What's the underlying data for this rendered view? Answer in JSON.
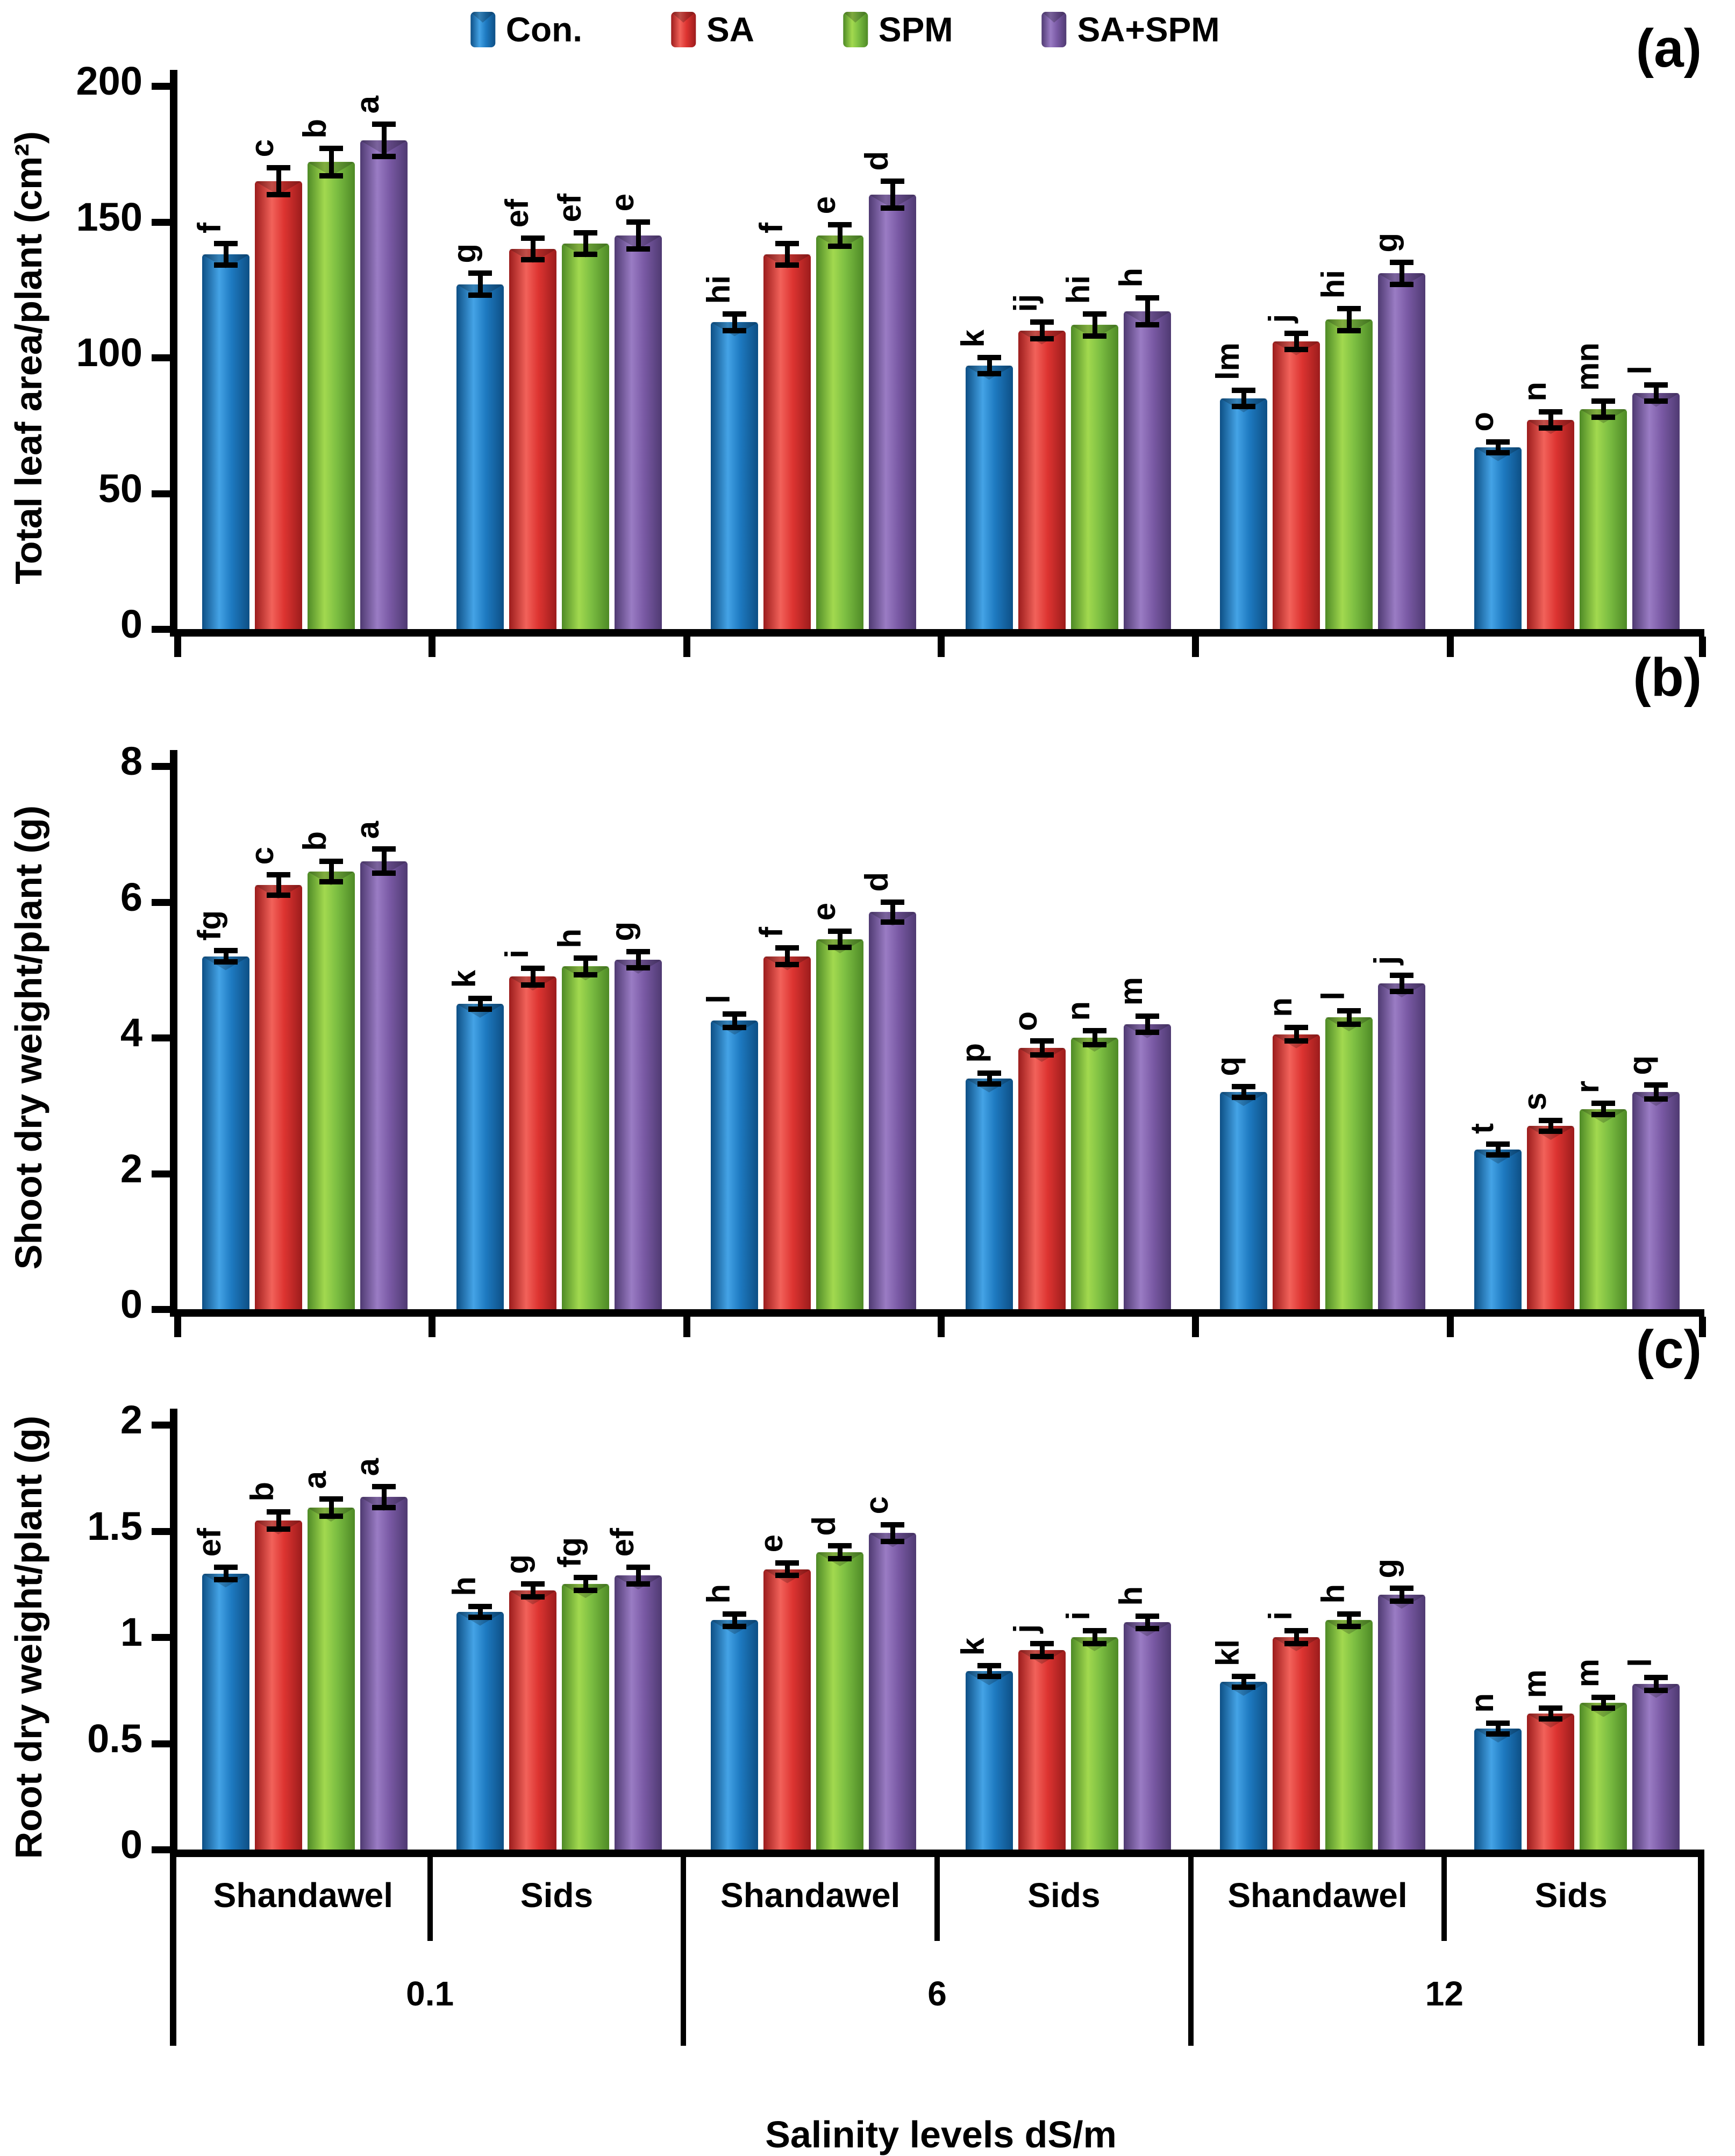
{
  "legend_note": "legend labels bound from chart_data.0.series names",
  "x_axis": {
    "group_labels": [
      "Shandawel",
      "Sids",
      "Shandawel",
      "Sids",
      "Shandawel",
      "Sids"
    ],
    "salinity_labels": [
      "0.1",
      "6",
      "12"
    ],
    "title": "Salinity levels dS/m"
  },
  "chart_data": [
    {
      "type": "bar",
      "panel_label": "(a)",
      "ylabel": "Total leaf area/plant (cm²)",
      "xlabel": "Salinity levels dS/m",
      "ylim": [
        0,
        200
      ],
      "yticks": [
        "0",
        "50",
        "100",
        "150",
        "200"
      ],
      "grid": false,
      "legend_position": "top-center",
      "categories": [
        "Shandawel 0.1",
        "Sids 0.1",
        "Shandawel 6",
        "Sids 6",
        "Shandawel 12",
        "Sids 12"
      ],
      "series": [
        {
          "name": "Con.",
          "color": "#1e7ac1",
          "color_light": "#44a3e6",
          "color_dark": "#0d4f85",
          "values": [
            138,
            127,
            113,
            97,
            85,
            67
          ],
          "errors": [
            4,
            4,
            3,
            3,
            3,
            2
          ],
          "letters": [
            "f",
            "g",
            "hi",
            "k",
            "lm",
            "o"
          ]
        },
        {
          "name": "SA",
          "color": "#dd3431",
          "color_light": "#f2625a",
          "color_dark": "#9c1c1c",
          "values": [
            165,
            140,
            138,
            110,
            106,
            77
          ],
          "errors": [
            5,
            4,
            4,
            3,
            3,
            3
          ],
          "letters": [
            "c",
            "ef",
            "f",
            "ij",
            "j",
            "n"
          ]
        },
        {
          "name": "SPM",
          "color": "#7cbe42",
          "color_light": "#a2d94f",
          "color_dark": "#4e8a26",
          "values": [
            172,
            142,
            145,
            112,
            114,
            81
          ],
          "errors": [
            5,
            4,
            4,
            4,
            4,
            3
          ],
          "letters": [
            "b",
            "ef",
            "e",
            "hi",
            "hi",
            "mn"
          ]
        },
        {
          "name": "SA+SPM",
          "color": "#7a5aa5",
          "color_light": "#9a7cc4",
          "color_dark": "#4f3a72",
          "values": [
            180,
            145,
            160,
            117,
            131,
            87
          ],
          "errors": [
            6,
            5,
            5,
            5,
            4,
            3
          ],
          "letters": [
            "a",
            "e",
            "d",
            "h",
            "g",
            "l"
          ]
        }
      ]
    },
    {
      "type": "bar",
      "panel_label": "(b)",
      "ylabel": "Shoot dry weight/plant (g)",
      "xlabel": "Salinity levels dS/m",
      "ylim": [
        0,
        8
      ],
      "yticks": [
        "0",
        "2",
        "4",
        "6",
        "8"
      ],
      "grid": false,
      "legend_position": "top-center",
      "categories": [
        "Shandawel 0.1",
        "Sids 0.1",
        "Shandawel 6",
        "Sids 6",
        "Shandawel 12",
        "Sids 12"
      ],
      "series": [
        {
          "name": "Con.",
          "color": "#1e7ac1",
          "color_light": "#44a3e6",
          "color_dark": "#0d4f85",
          "values": [
            5.2,
            4.5,
            4.25,
            3.4,
            3.2,
            2.35
          ],
          "errors": [
            0.08,
            0.08,
            0.1,
            0.08,
            0.08,
            0.06
          ],
          "letters": [
            "fg",
            "k",
            "l",
            "p",
            "q",
            "t"
          ]
        },
        {
          "name": "SA",
          "color": "#dd3431",
          "color_light": "#f2625a",
          "color_dark": "#9c1c1c",
          "values": [
            6.25,
            4.9,
            5.2,
            3.85,
            4.05,
            2.7
          ],
          "errors": [
            0.15,
            0.12,
            0.12,
            0.1,
            0.1,
            0.08
          ],
          "letters": [
            "c",
            "i",
            "f",
            "o",
            "n",
            "s"
          ]
        },
        {
          "name": "SPM",
          "color": "#7cbe42",
          "color_light": "#a2d94f",
          "color_dark": "#4e8a26",
          "values": [
            6.45,
            5.05,
            5.45,
            4.0,
            4.3,
            2.95
          ],
          "errors": [
            0.15,
            0.12,
            0.12,
            0.1,
            0.1,
            0.08
          ],
          "letters": [
            "b",
            "h",
            "e",
            "n",
            "l",
            "r"
          ]
        },
        {
          "name": "SA+SPM",
          "color": "#7a5aa5",
          "color_light": "#9a7cc4",
          "color_dark": "#4f3a72",
          "values": [
            6.6,
            5.15,
            5.85,
            4.2,
            4.8,
            3.2
          ],
          "errors": [
            0.18,
            0.12,
            0.15,
            0.12,
            0.12,
            0.1
          ],
          "letters": [
            "a",
            "g",
            "d",
            "m",
            "j",
            "q"
          ]
        }
      ]
    },
    {
      "type": "bar",
      "panel_label": "(c)",
      "ylabel": "Root dry weight/plant (g)",
      "xlabel": "Salinity levels dS/m",
      "ylim": [
        0,
        2
      ],
      "yticks": [
        "0",
        "0.5",
        "1",
        "1.5",
        "2"
      ],
      "grid": false,
      "legend_position": "top-center",
      "categories": [
        "Shandawel 0.1",
        "Sids 0.1",
        "Shandawel 6",
        "Sids 6",
        "Shandawel 12",
        "Sids 12"
      ],
      "series": [
        {
          "name": "Con.",
          "color": "#1e7ac1",
          "color_light": "#44a3e6",
          "color_dark": "#0d4f85",
          "values": [
            1.3,
            1.12,
            1.08,
            0.84,
            0.79,
            0.57
          ],
          "errors": [
            0.03,
            0.02,
            0.03,
            0.02,
            0.02,
            0.02
          ],
          "letters": [
            "ef",
            "h",
            "h",
            "k",
            "kl",
            "n"
          ]
        },
        {
          "name": "SA",
          "color": "#dd3431",
          "color_light": "#f2625a",
          "color_dark": "#9c1c1c",
          "values": [
            1.55,
            1.22,
            1.32,
            0.94,
            1.0,
            0.64
          ],
          "errors": [
            0.04,
            0.03,
            0.03,
            0.03,
            0.03,
            0.02
          ],
          "letters": [
            "b",
            "g",
            "e",
            "j",
            "i",
            "m"
          ]
        },
        {
          "name": "SPM",
          "color": "#7cbe42",
          "color_light": "#a2d94f",
          "color_dark": "#4e8a26",
          "values": [
            1.61,
            1.25,
            1.4,
            1.0,
            1.08,
            0.69
          ],
          "errors": [
            0.04,
            0.03,
            0.03,
            0.03,
            0.03,
            0.02
          ],
          "letters": [
            "a",
            "fg",
            "d",
            "i",
            "h",
            "m"
          ]
        },
        {
          "name": "SA+SPM",
          "color": "#7a5aa5",
          "color_light": "#9a7cc4",
          "color_dark": "#4f3a72",
          "values": [
            1.66,
            1.29,
            1.49,
            1.07,
            1.2,
            0.78
          ],
          "errors": [
            0.05,
            0.04,
            0.04,
            0.03,
            0.03,
            0.03
          ],
          "letters": [
            "a",
            "ef",
            "c",
            "h",
            "g",
            "l"
          ]
        }
      ]
    }
  ]
}
